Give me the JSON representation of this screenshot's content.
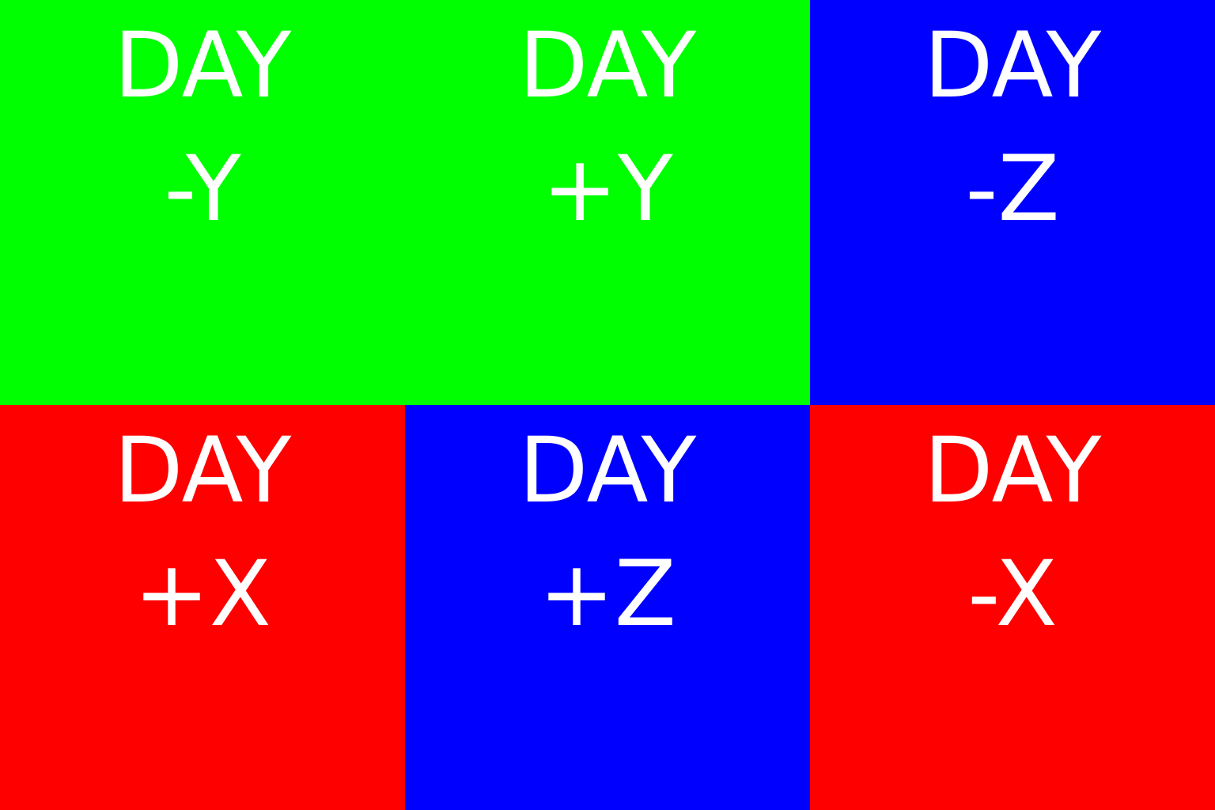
{
  "tiles": [
    {
      "line1": "DAY",
      "line2": "-Y",
      "color": "#00FF00"
    },
    {
      "line1": "DAY",
      "line2": "+Y",
      "color": "#00FF00"
    },
    {
      "line1": "DAY",
      "line2": "-Z",
      "color": "#0000FF"
    },
    {
      "line1": "DAY",
      "line2": "+X",
      "color": "#FF0000"
    },
    {
      "line1": "DAY",
      "line2": "+Z",
      "color": "#0000FF"
    },
    {
      "line1": "DAY",
      "line2": "-X",
      "color": "#FF0000"
    }
  ]
}
